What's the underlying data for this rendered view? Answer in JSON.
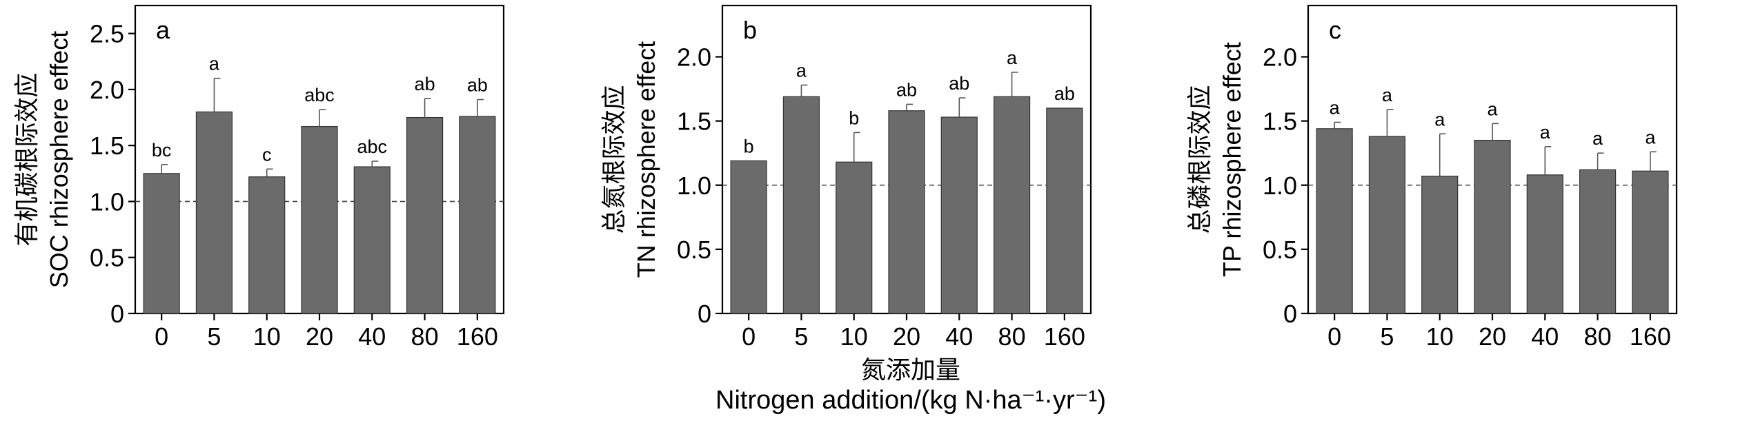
{
  "figure": {
    "xlabel_cn": "氮添加量",
    "xlabel_en": "Nitrogen addition/(kg N·ha⁻¹·yr⁻¹)"
  },
  "colors": {
    "bar": "#6b6b6b",
    "axis": "#000000",
    "reference_line": "#444444"
  },
  "chart_data": [
    {
      "type": "bar",
      "panel_label": "a",
      "ylabel_cn": "有机碳根际效应",
      "ylabel_en": "SOC rhizosphere effect",
      "categories": [
        "0",
        "5",
        "10",
        "20",
        "40",
        "80",
        "160"
      ],
      "values": [
        1.25,
        1.8,
        1.22,
        1.67,
        1.31,
        1.75,
        1.76
      ],
      "errors": [
        0.08,
        0.3,
        0.07,
        0.15,
        0.05,
        0.17,
        0.15
      ],
      "letters": [
        "bc",
        "a",
        "c",
        "abc",
        "abc",
        "ab",
        "ab"
      ],
      "ylim": [
        0,
        2.75
      ],
      "yticks": [
        0,
        0.5,
        1.0,
        1.5,
        2.0,
        2.5
      ],
      "ytick_labels": [
        "0",
        "0.5",
        "1.0",
        "1.5",
        "2.0",
        "2.5"
      ],
      "reference_line": 1.0
    },
    {
      "type": "bar",
      "panel_label": "b",
      "ylabel_cn": "总氮根际效应",
      "ylabel_en": "TN rhizosphere effect",
      "categories": [
        "0",
        "5",
        "10",
        "20",
        "40",
        "80",
        "160"
      ],
      "values": [
        1.19,
        1.69,
        1.18,
        1.58,
        1.53,
        1.69,
        1.6
      ],
      "errors": [
        0.0,
        0.09,
        0.23,
        0.05,
        0.15,
        0.19,
        0.0
      ],
      "letters": [
        "b",
        "a",
        "b",
        "ab",
        "ab",
        "a",
        "ab"
      ],
      "ylim": [
        0,
        2.4
      ],
      "yticks": [
        0,
        0.5,
        1.0,
        1.5,
        2.0
      ],
      "ytick_labels": [
        "0",
        "0.5",
        "1.0",
        "1.5",
        "2.0"
      ],
      "reference_line": 1.0
    },
    {
      "type": "bar",
      "panel_label": "c",
      "ylabel_cn": "总磷根际效应",
      "ylabel_en": "TP rhizosphere effect",
      "categories": [
        "0",
        "5",
        "10",
        "20",
        "40",
        "80",
        "160"
      ],
      "values": [
        1.44,
        1.38,
        1.07,
        1.35,
        1.08,
        1.12,
        1.11
      ],
      "errors": [
        0.05,
        0.21,
        0.33,
        0.13,
        0.22,
        0.13,
        0.15
      ],
      "letters": [
        "a",
        "a",
        "a",
        "a",
        "a",
        "a",
        "a"
      ],
      "ylim": [
        0,
        2.4
      ],
      "yticks": [
        0,
        0.5,
        1.0,
        1.5,
        2.0
      ],
      "ytick_labels": [
        "0",
        "0.5",
        "1.0",
        "1.5",
        "2.0"
      ],
      "reference_line": 1.0
    }
  ]
}
